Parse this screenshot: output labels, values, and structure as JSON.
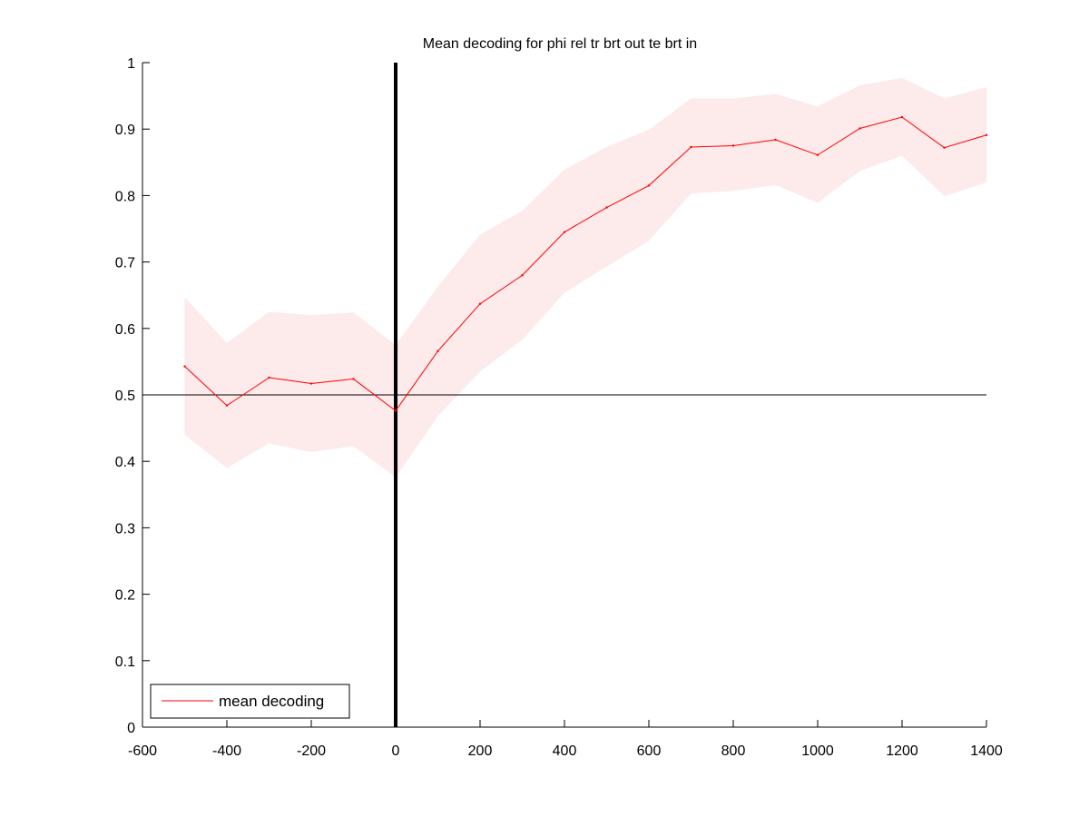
{
  "chart_data": {
    "type": "line",
    "title": "Mean decoding for phi rel tr brt out te brt in",
    "xlabel": "",
    "ylabel": "",
    "xlim": [
      -600,
      1400
    ],
    "ylim": [
      0,
      1
    ],
    "xticks": [
      -600,
      -400,
      -200,
      0,
      200,
      400,
      600,
      800,
      1000,
      1200,
      1400
    ],
    "yticks": [
      0,
      0.1,
      0.2,
      0.3,
      0.4,
      0.5,
      0.6,
      0.7,
      0.8,
      0.9,
      1
    ],
    "xtick_labels": [
      "-600",
      "-400",
      "-200",
      "0",
      "200",
      "400",
      "600",
      "800",
      "1000",
      "1200",
      "1400"
    ],
    "ytick_labels": [
      "0",
      "0.1",
      "0.2",
      "0.3",
      "0.4",
      "0.5",
      "0.6",
      "0.7",
      "0.8",
      "0.9",
      "1"
    ],
    "grid": false,
    "legend_position": "bottom-left",
    "series": [
      {
        "name": "mean decoding",
        "color": "#ff0000",
        "x": [
          -500,
          -400,
          -300,
          -200,
          -100,
          0,
          100,
          200,
          300,
          400,
          500,
          600,
          700,
          800,
          900,
          1000,
          1100,
          1200,
          1300,
          1400
        ],
        "values": [
          0.543,
          0.484,
          0.526,
          0.517,
          0.524,
          0.476,
          0.566,
          0.637,
          0.68,
          0.745,
          0.782,
          0.815,
          0.873,
          0.875,
          0.884,
          0.861,
          0.901,
          0.918,
          0.872,
          0.891
        ],
        "upper": [
          0.647,
          0.578,
          0.625,
          0.62,
          0.624,
          0.575,
          0.663,
          0.741,
          0.777,
          0.839,
          0.873,
          0.899,
          0.946,
          0.946,
          0.953,
          0.934,
          0.966,
          0.977,
          0.946,
          0.963
        ],
        "lower": [
          0.44,
          0.39,
          0.427,
          0.414,
          0.423,
          0.376,
          0.468,
          0.535,
          0.583,
          0.654,
          0.693,
          0.732,
          0.803,
          0.807,
          0.816,
          0.789,
          0.837,
          0.86,
          0.799,
          0.82
        ]
      }
    ],
    "band_color": "#fdeaea",
    "reference_lines": [
      {
        "orientation": "horizontal",
        "value": 0.5,
        "color": "#000000"
      },
      {
        "orientation": "vertical",
        "value": 0,
        "color": "#000000"
      }
    ]
  }
}
